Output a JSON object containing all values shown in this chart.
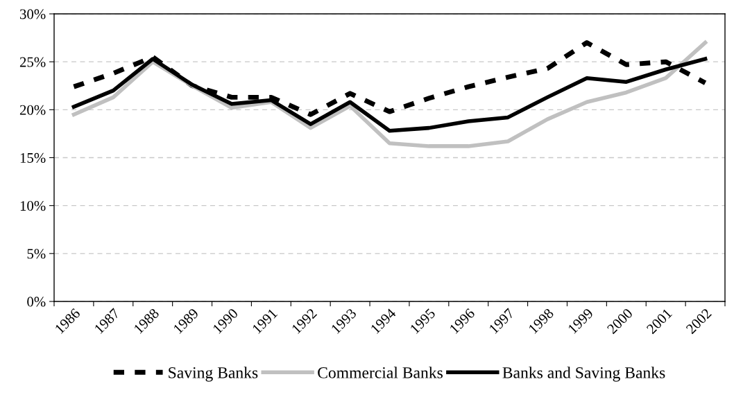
{
  "chart_data": {
    "type": "line",
    "categories": [
      "1986",
      "1987",
      "1988",
      "1989",
      "1990",
      "1991",
      "1992",
      "1993",
      "1994",
      "1995",
      "1996",
      "1997",
      "1998",
      "1999",
      "2000",
      "2001",
      "2002"
    ],
    "series": [
      {
        "name": "Saving Banks",
        "color": "#000000",
        "line_style": "dashed",
        "values": [
          22.4,
          23.8,
          25.5,
          22.5,
          21.3,
          21.3,
          19.5,
          21.7,
          19.8,
          21.2,
          22.4,
          23.4,
          24.3,
          27.0,
          24.7,
          25.0,
          22.8
        ]
      },
      {
        "name": "Commercial Banks",
        "color": "#c0c0c0",
        "line_style": "solid",
        "values": [
          19.5,
          21.3,
          25.0,
          22.5,
          20.2,
          20.8,
          18.1,
          20.4,
          16.5,
          16.2,
          16.2,
          16.7,
          19.0,
          20.8,
          21.8,
          23.3,
          27.0
        ]
      },
      {
        "name": "Banks and Saving Banks",
        "color": "#000000",
        "line_style": "solid",
        "values": [
          20.3,
          22.0,
          25.3,
          22.6,
          20.6,
          21.0,
          18.5,
          20.8,
          17.8,
          18.1,
          18.8,
          19.2,
          21.3,
          23.3,
          22.9,
          24.2,
          25.3
        ]
      }
    ],
    "ylim": [
      0,
      30
    ],
    "yticks": [
      {
        "value": 0,
        "label": "0%"
      },
      {
        "value": 5,
        "label": "5%"
      },
      {
        "value": 10,
        "label": "10%"
      },
      {
        "value": 15,
        "label": "15%"
      },
      {
        "value": 20,
        "label": "20%"
      },
      {
        "value": 25,
        "label": "25%"
      },
      {
        "value": 30,
        "label": "30%"
      }
    ],
    "grid": "y",
    "legend": "bottom",
    "marker": "none"
  }
}
